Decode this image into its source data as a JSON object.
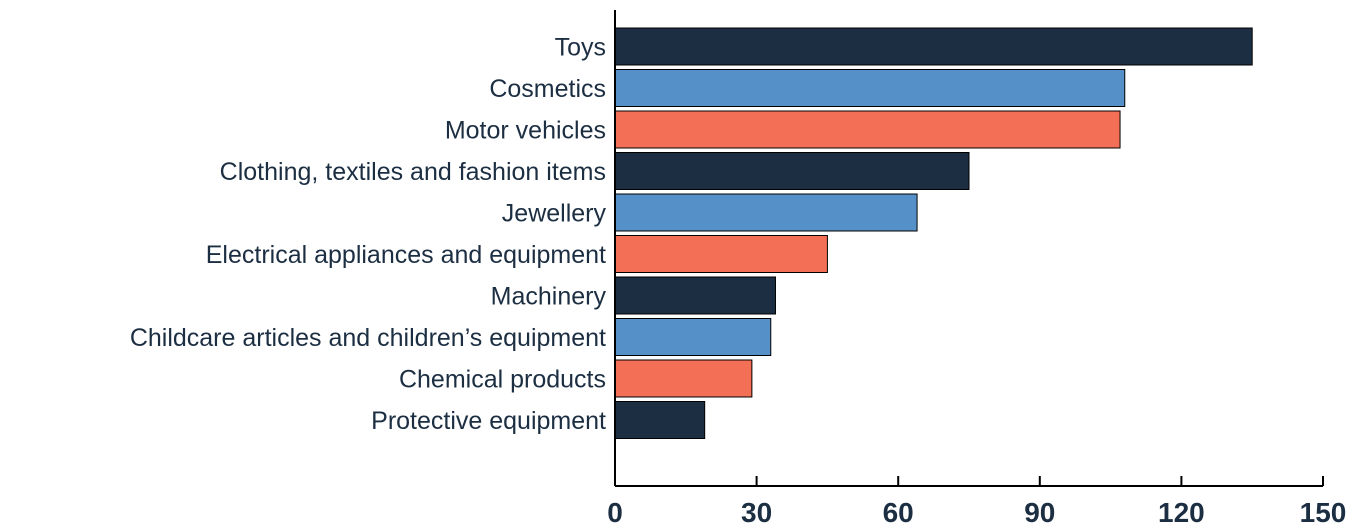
{
  "chart_data": {
    "type": "bar",
    "orientation": "horizontal",
    "title": "",
    "xlabel": "",
    "ylabel": "",
    "categories": [
      "Toys",
      "Cosmetics",
      "Motor vehicles",
      "Clothing, textiles and fashion items",
      "Jewellery",
      "Electrical appliances and equipment",
      "Machinery",
      "Childcare articles and children’s equipment",
      "Chemical products",
      "Protective equipment"
    ],
    "values": [
      135,
      108,
      107,
      75,
      64,
      45,
      34,
      33,
      29,
      19
    ],
    "colors": [
      "#1c2e42",
      "#5690c8",
      "#f37057",
      "#1c2e42",
      "#5690c8",
      "#f37057",
      "#1c2e42",
      "#5690c8",
      "#f37057",
      "#1c2e42"
    ],
    "xlim": [
      0,
      150
    ],
    "xticks": [
      "0",
      "30",
      "60",
      "90",
      "120",
      "150"
    ],
    "grid": false,
    "legend": "none"
  }
}
